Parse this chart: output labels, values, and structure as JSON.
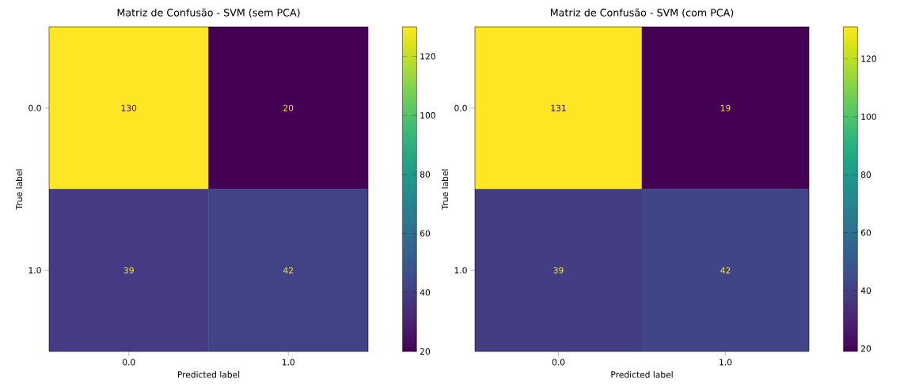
{
  "chart_data": [
    {
      "type": "heatmap",
      "title": "Matriz de Confusão - SVM (sem PCA)",
      "xlabel": "Predicted label",
      "ylabel": "True label",
      "categories": [
        "0.0",
        "1.0"
      ],
      "y_categories": [
        "0.0",
        "1.0"
      ],
      "cells": [
        [
          130,
          20
        ],
        [
          39,
          42
        ]
      ],
      "data_labels": true,
      "clim": [
        20,
        130
      ],
      "cticks": [
        20,
        40,
        60,
        80,
        100,
        120
      ]
    },
    {
      "type": "heatmap",
      "title": "Matriz de Confusão - SVM (com PCA)",
      "xlabel": "Predicted label",
      "ylabel": "True label",
      "categories": [
        "0.0",
        "1.0"
      ],
      "y_categories": [
        "0.0",
        "1.0"
      ],
      "cells": [
        [
          131,
          19
        ],
        [
          39,
          42
        ]
      ],
      "data_labels": true,
      "clim": [
        19,
        131
      ],
      "cticks": [
        20,
        40,
        60,
        80,
        100,
        120
      ]
    }
  ]
}
